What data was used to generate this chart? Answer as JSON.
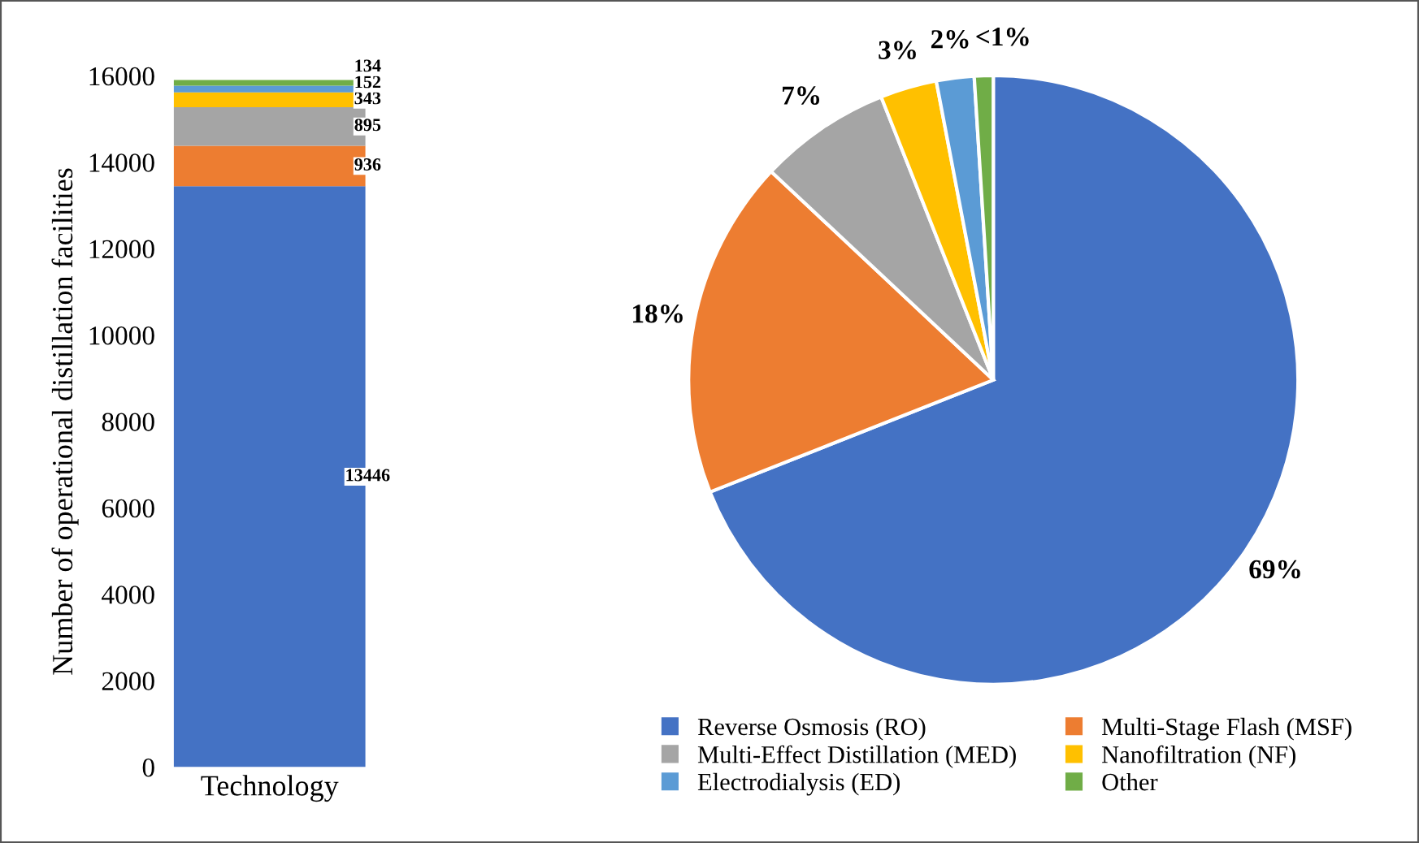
{
  "chart_data": [
    {
      "type": "bar",
      "stacked": true,
      "categories": [
        "Technology"
      ],
      "ylabel": "Number of operational distillation facilities",
      "ylim": [
        0,
        16000
      ],
      "yticks": [
        0,
        2000,
        4000,
        6000,
        8000,
        10000,
        12000,
        14000,
        16000
      ],
      "grid": false,
      "legend": false,
      "data_labels": true,
      "series": [
        {
          "color": "#4472c4",
          "values": [
            13446
          ]
        },
        {
          "color": "#ed7d31",
          "values": [
            936
          ]
        },
        {
          "color": "#a5a5a5",
          "values": [
            895
          ]
        },
        {
          "color": "#ffc000",
          "values": [
            343
          ]
        },
        {
          "color": "#5b9bd5",
          "values": [
            152
          ]
        },
        {
          "color": "#70ad47",
          "values": [
            134
          ]
        }
      ]
    },
    {
      "type": "pie",
      "categories": [
        "Reverse Osmosis (RO)",
        "Multi-Stage Flash (MSF)",
        "Multi-Effect Distillation (MED)",
        "Nanofiltration (NF)",
        "Electrodialysis (ED)",
        "Other"
      ],
      "values": [
        69,
        18,
        7,
        3,
        2,
        1
      ],
      "value_labels": [
        "69%",
        "18%",
        "7%",
        "3%",
        "2%",
        "<1%"
      ],
      "colors": [
        "#4472c4",
        "#ed7d31",
        "#a5a5a5",
        "#ffc000",
        "#5b9bd5",
        "#70ad47"
      ],
      "legend": "bottom"
    }
  ]
}
